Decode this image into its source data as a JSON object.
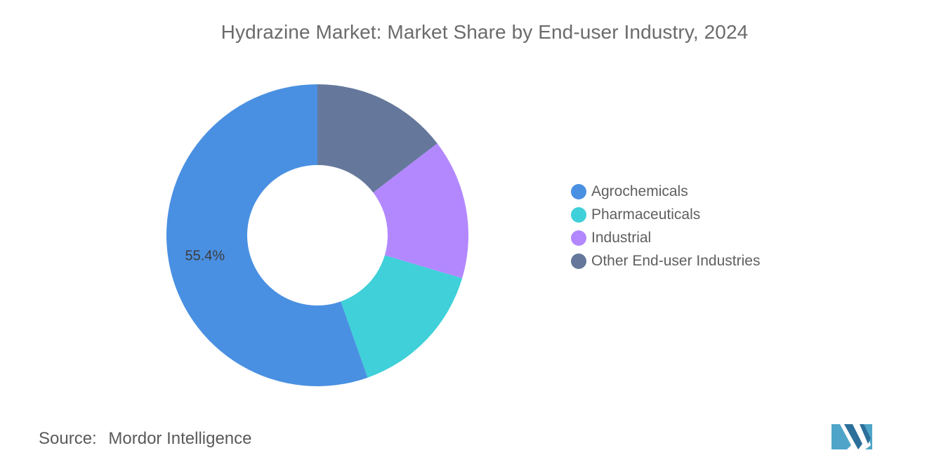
{
  "chart_data": {
    "type": "pie",
    "variant": "donut",
    "title": "Hydrazine Market: Market Share by End-user Industry, 2024",
    "categories": [
      "Agrochemicals",
      "Pharmaceuticals",
      "Industrial",
      "Other End-user Industries"
    ],
    "values": [
      55.4,
      15.0,
      15.0,
      14.6
    ],
    "colors": [
      "#4a90e2",
      "#3fd0d9",
      "#b388ff",
      "#65789b"
    ],
    "data_labels": [
      "55.4%",
      "",
      "",
      ""
    ],
    "legend_position": "right",
    "start_angle_deg": 0,
    "direction": "clockwise"
  },
  "footer": {
    "source_label": "Source:",
    "source_value": "Mordor Intelligence"
  },
  "logo": {
    "name": "mordor-intelligence-logo",
    "colors": [
      "#4ea5c9",
      "#2b6f9a"
    ]
  }
}
